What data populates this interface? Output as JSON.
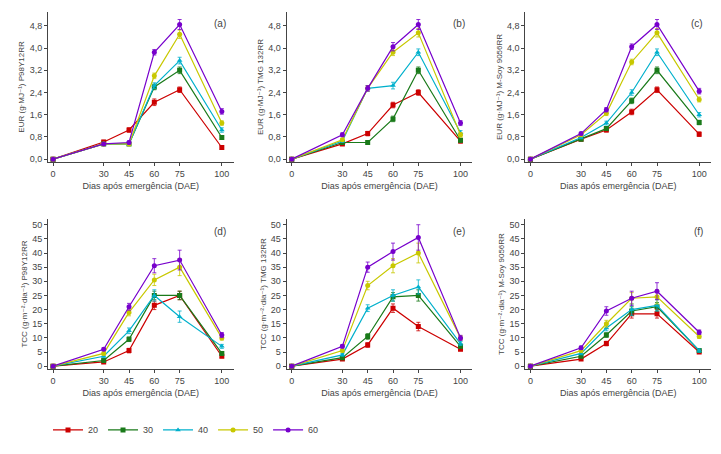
{
  "chart_data": [
    {
      "type": "line",
      "annotation": "(a)",
      "xlabel": "Dias após emergência (DAE)",
      "ylabel": "EUR (g·MJ⁻¹) P98Y12RR",
      "x": [
        0,
        30,
        45,
        60,
        75,
        100
      ],
      "xlim": [
        -3,
        107
      ],
      "xticks": [
        0,
        30,
        45,
        60,
        75,
        100
      ],
      "ylim": [
        -0.1,
        5.3
      ],
      "yticks": [
        {
          "value": 0.0,
          "label": "0,0"
        },
        {
          "value": 0.8,
          "label": "0,8"
        },
        {
          "value": 1.6,
          "label": "1,6"
        },
        {
          "value": 2.4,
          "label": "2,4"
        },
        {
          "value": 3.2,
          "label": "3,2"
        },
        {
          "value": 4.0,
          "label": "4,0"
        },
        {
          "value": 4.8,
          "label": "4,8"
        }
      ],
      "grid": false,
      "legend": "lower left",
      "series": [
        {
          "name": "20",
          "color": "#cc0000",
          "marker": "square",
          "values": [
            0,
            0.62,
            1.05,
            2.05,
            2.5,
            0.42
          ],
          "errors": [
            0,
            0.06,
            0.08,
            0.12,
            0.1,
            0.06
          ]
        },
        {
          "name": "30",
          "color": "#1a7a1a",
          "marker": "square",
          "values": [
            0,
            0.55,
            0.55,
            2.6,
            3.2,
            0.78
          ],
          "errors": [
            0,
            0.05,
            0.05,
            0.1,
            0.12,
            0.07
          ]
        },
        {
          "name": "40",
          "color": "#00b0cc",
          "marker": "triangle",
          "values": [
            0,
            0.55,
            0.55,
            2.65,
            3.55,
            1.05
          ],
          "errors": [
            0,
            0.05,
            0.05,
            0.1,
            0.12,
            0.08
          ]
        },
        {
          "name": "50",
          "color": "#c8c800",
          "marker": "circle",
          "values": [
            0,
            0.55,
            0.55,
            3.0,
            4.5,
            1.3
          ],
          "errors": [
            0,
            0.05,
            0.05,
            0.1,
            0.15,
            0.08
          ]
        },
        {
          "name": "60",
          "color": "#7700cc",
          "marker": "circle",
          "values": [
            0,
            0.55,
            0.6,
            3.85,
            4.85,
            1.72
          ],
          "errors": [
            0,
            0.05,
            0.06,
            0.1,
            0.18,
            0.1
          ]
        }
      ]
    },
    {
      "type": "line",
      "annotation": "(b)",
      "xlabel": "Dias após emergência (DAE)",
      "ylabel": "EUR (g·MJ⁻¹) TMG 132RR",
      "x": [
        0,
        30,
        45,
        60,
        75,
        100
      ],
      "xlim": [
        -3,
        107
      ],
      "xticks": [
        0,
        30,
        45,
        60,
        75,
        100
      ],
      "ylim": [
        -0.1,
        5.3
      ],
      "yticks": [
        {
          "value": 0.0,
          "label": "0,0"
        },
        {
          "value": 0.8,
          "label": "0,8"
        },
        {
          "value": 1.6,
          "label": "1,6"
        },
        {
          "value": 2.4,
          "label": "2,4"
        },
        {
          "value": 3.2,
          "label": "3,2"
        },
        {
          "value": 4.0,
          "label": "4,0"
        },
        {
          "value": 4.8,
          "label": "4,8"
        }
      ],
      "grid": false,
      "legend": "lower left",
      "series": [
        {
          "name": "20",
          "color": "#cc0000",
          "marker": "square",
          "values": [
            0,
            0.55,
            0.92,
            1.95,
            2.4,
            0.65
          ],
          "errors": [
            0,
            0.05,
            0.08,
            0.1,
            0.1,
            0.07
          ]
        },
        {
          "name": "30",
          "color": "#1a7a1a",
          "marker": "square",
          "values": [
            0,
            0.6,
            0.6,
            1.45,
            3.2,
            0.68
          ],
          "errors": [
            0,
            0.05,
            0.05,
            0.1,
            0.12,
            0.07
          ]
        },
        {
          "name": "40",
          "color": "#00b0cc",
          "marker": "triangle",
          "values": [
            0,
            0.65,
            2.55,
            2.65,
            3.85,
            0.95
          ],
          "errors": [
            0,
            0.05,
            0.1,
            0.12,
            0.12,
            0.08
          ]
        },
        {
          "name": "50",
          "color": "#c8c800",
          "marker": "circle",
          "values": [
            0,
            0.7,
            2.55,
            3.85,
            4.55,
            0.88
          ],
          "errors": [
            0,
            0.05,
            0.1,
            0.12,
            0.15,
            0.08
          ]
        },
        {
          "name": "60",
          "color": "#7700cc",
          "marker": "circle",
          "values": [
            0,
            0.88,
            2.55,
            4.05,
            4.85,
            1.3
          ],
          "errors": [
            0,
            0.07,
            0.1,
            0.15,
            0.18,
            0.09
          ]
        }
      ]
    },
    {
      "type": "line",
      "annotation": "(c)",
      "xlabel": "Dias após emergência (DAE)",
      "ylabel": "EUR (g·MJ⁻¹) M-Soy 9056RR",
      "x": [
        0,
        30,
        45,
        60,
        75,
        100
      ],
      "xlim": [
        -3,
        107
      ],
      "xticks": [
        0,
        30,
        45,
        60,
        75,
        100
      ],
      "ylim": [
        -0.1,
        5.3
      ],
      "yticks": [
        {
          "value": 0.0,
          "label": "0,0"
        },
        {
          "value": 0.8,
          "label": "0,8"
        },
        {
          "value": 1.6,
          "label": "1,6"
        },
        {
          "value": 2.4,
          "label": "2,4"
        },
        {
          "value": 3.2,
          "label": "3,2"
        },
        {
          "value": 4.0,
          "label": "4,0"
        },
        {
          "value": 4.8,
          "label": "4,8"
        }
      ],
      "grid": false,
      "legend": "lower left",
      "series": [
        {
          "name": "20",
          "color": "#cc0000",
          "marker": "square",
          "values": [
            0,
            0.72,
            1.05,
            1.7,
            2.5,
            0.9
          ],
          "errors": [
            0,
            0.05,
            0.07,
            0.1,
            0.1,
            0.08
          ]
        },
        {
          "name": "30",
          "color": "#1a7a1a",
          "marker": "square",
          "values": [
            0,
            0.72,
            1.1,
            2.1,
            3.2,
            1.32
          ],
          "errors": [
            0,
            0.05,
            0.07,
            0.1,
            0.12,
            0.08
          ]
        },
        {
          "name": "40",
          "color": "#00b0cc",
          "marker": "triangle",
          "values": [
            0,
            0.78,
            1.3,
            2.4,
            3.85,
            1.6
          ],
          "errors": [
            0,
            0.05,
            0.07,
            0.1,
            0.12,
            0.08
          ]
        },
        {
          "name": "50",
          "color": "#c8c800",
          "marker": "circle",
          "values": [
            0,
            0.88,
            1.65,
            3.5,
            4.55,
            2.15
          ],
          "errors": [
            0,
            0.05,
            0.08,
            0.1,
            0.15,
            0.09
          ]
        },
        {
          "name": "60",
          "color": "#7700cc",
          "marker": "circle",
          "values": [
            0,
            0.92,
            1.78,
            4.05,
            4.85,
            2.45
          ],
          "errors": [
            0,
            0.05,
            0.08,
            0.1,
            0.18,
            0.1
          ]
        }
      ]
    },
    {
      "type": "line",
      "annotation": "(d)",
      "xlabel": "Dias após emergência (DAE)",
      "ylabel": "TCC (g·m⁻²·dia⁻¹) P98Y12RR",
      "x": [
        0,
        30,
        45,
        60,
        75,
        100
      ],
      "xlim": [
        -3,
        107
      ],
      "xticks": [
        0,
        30,
        45,
        60,
        75,
        100
      ],
      "ylim": [
        -1,
        52
      ],
      "yticks": [
        0,
        5,
        10,
        15,
        20,
        25,
        30,
        35,
        40,
        45,
        50
      ],
      "grid": false,
      "legend": "lower left",
      "series": [
        {
          "name": "20",
          "color": "#cc0000",
          "marker": "square",
          "values": [
            0,
            1.5,
            5.5,
            21.5,
            25.0,
            3.5
          ],
          "errors": [
            0,
            0.5,
            0.8,
            1.5,
            1.5,
            0.5
          ]
        },
        {
          "name": "30",
          "color": "#1a7a1a",
          "marker": "square",
          "values": [
            0,
            2.0,
            9.5,
            25.0,
            25.0,
            4.5
          ],
          "errors": [
            0,
            0.5,
            0.8,
            1.5,
            1.5,
            0.5
          ]
        },
        {
          "name": "40",
          "color": "#00b0cc",
          "marker": "triangle",
          "values": [
            0,
            3.5,
            12.5,
            25.0,
            17.5,
            7.0
          ],
          "errors": [
            0,
            0.5,
            1.0,
            2.0,
            2.0,
            0.7
          ]
        },
        {
          "name": "50",
          "color": "#c8c800",
          "marker": "circle",
          "values": [
            0,
            4.5,
            19.0,
            30.5,
            35.0,
            10.0
          ],
          "errors": [
            0,
            0.5,
            1.2,
            2.0,
            3.0,
            0.8
          ]
        },
        {
          "name": "60",
          "color": "#7700cc",
          "marker": "circle",
          "values": [
            0,
            6.0,
            21.0,
            35.5,
            37.5,
            11.0
          ],
          "errors": [
            0,
            0.5,
            1.2,
            2.5,
            3.5,
            0.9
          ]
        }
      ]
    },
    {
      "type": "line",
      "annotation": "(e)",
      "xlabel": "Dias após emergência (DAE)",
      "ylabel": "TCC (g·m⁻²·dia⁻¹) TMG 132RR",
      "x": [
        0,
        30,
        45,
        60,
        75,
        100
      ],
      "xlim": [
        -3,
        107
      ],
      "xticks": [
        0,
        30,
        45,
        60,
        75,
        100
      ],
      "ylim": [
        -1,
        52
      ],
      "yticks": [
        0,
        5,
        10,
        15,
        20,
        25,
        30,
        35,
        40,
        45,
        50
      ],
      "grid": false,
      "legend": "lower left",
      "series": [
        {
          "name": "20",
          "color": "#cc0000",
          "marker": "square",
          "values": [
            0,
            2.5,
            7.5,
            20.5,
            14.0,
            6.0
          ],
          "errors": [
            0,
            0.5,
            0.8,
            1.5,
            1.5,
            0.5
          ]
        },
        {
          "name": "30",
          "color": "#1a7a1a",
          "marker": "square",
          "values": [
            0,
            3.0,
            10.5,
            24.5,
            25.0,
            7.0
          ],
          "errors": [
            0,
            0.5,
            1.0,
            1.5,
            2.0,
            0.6
          ]
        },
        {
          "name": "40",
          "color": "#00b0cc",
          "marker": "triangle",
          "values": [
            0,
            4.0,
            20.5,
            25.0,
            28.0,
            8.0
          ],
          "errors": [
            0,
            0.5,
            1.2,
            2.0,
            2.5,
            0.7
          ]
        },
        {
          "name": "50",
          "color": "#c8c800",
          "marker": "circle",
          "values": [
            0,
            5.5,
            28.5,
            35.5,
            40.0,
            10.0
          ],
          "errors": [
            0,
            0.5,
            1.5,
            2.5,
            3.5,
            0.8
          ]
        },
        {
          "name": "60",
          "color": "#7700cc",
          "marker": "circle",
          "values": [
            0,
            7.0,
            35.0,
            40.5,
            45.5,
            10.0
          ],
          "errors": [
            0,
            0.6,
            1.8,
            3.0,
            4.5,
            0.9
          ]
        }
      ]
    },
    {
      "type": "line",
      "annotation": "(f)",
      "xlabel": "Dias após emergência (DAE)",
      "ylabel": "TCC (g·m⁻²·dia⁻¹) M-Soy 9056RR",
      "x": [
        0,
        30,
        45,
        60,
        75,
        100
      ],
      "xlim": [
        -3,
        107
      ],
      "xticks": [
        0,
        30,
        45,
        60,
        75,
        100
      ],
      "ylim": [
        -1,
        52
      ],
      "yticks": [
        0,
        5,
        10,
        15,
        20,
        25,
        30,
        35,
        40,
        45,
        50
      ],
      "grid": false,
      "legend": "lower left",
      "series": [
        {
          "name": "20",
          "color": "#cc0000",
          "marker": "square",
          "values": [
            0,
            2.5,
            8.0,
            18.5,
            18.5,
            5.0
          ],
          "errors": [
            0,
            0.5,
            0.8,
            1.5,
            1.5,
            0.5
          ]
        },
        {
          "name": "30",
          "color": "#1a7a1a",
          "marker": "square",
          "values": [
            0,
            3.5,
            11.0,
            19.5,
            21.0,
            5.5
          ],
          "errors": [
            0,
            0.5,
            0.8,
            1.5,
            1.5,
            0.5
          ]
        },
        {
          "name": "40",
          "color": "#00b0cc",
          "marker": "triangle",
          "values": [
            0,
            4.5,
            13.5,
            20.0,
            21.5,
            5.5
          ],
          "errors": [
            0,
            0.5,
            1.0,
            2.0,
            2.0,
            0.6
          ]
        },
        {
          "name": "50",
          "color": "#c8c800",
          "marker": "circle",
          "values": [
            0,
            5.5,
            15.0,
            24.0,
            24.5,
            10.5
          ],
          "errors": [
            0,
            0.5,
            1.2,
            2.0,
            2.5,
            0.7
          ]
        },
        {
          "name": "60",
          "color": "#7700cc",
          "marker": "circle",
          "values": [
            0,
            6.5,
            19.5,
            24.0,
            26.5,
            12.0
          ],
          "errors": [
            0,
            0.6,
            1.5,
            2.5,
            3.0,
            0.8
          ]
        }
      ]
    }
  ]
}
